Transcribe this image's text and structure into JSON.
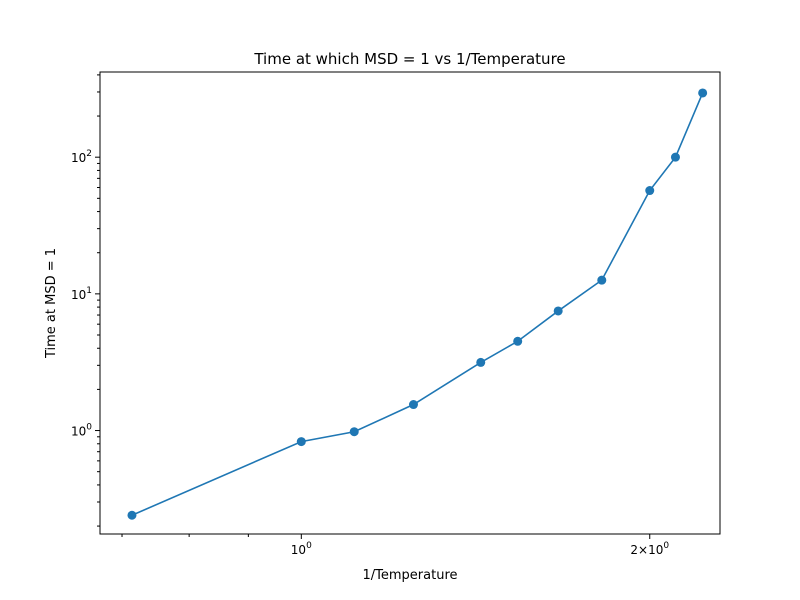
{
  "chart_data": {
    "type": "line",
    "title": "Time at which MSD = 1 vs 1/Temperature",
    "xlabel": "1/Temperature",
    "ylabel": "Time at MSD = 1",
    "xscale": "log",
    "yscale": "log",
    "xlim": [
      0.67,
      2.3
    ],
    "ylim": [
      0.175,
      420
    ],
    "grid": false,
    "legend": "none",
    "x_tick_labels": [
      "10^0",
      "2×10^0"
    ],
    "y_tick_labels": [
      "10^0",
      "10^1",
      "10^2"
    ],
    "series": [
      {
        "color": "#1f77b4",
        "marker": "circle",
        "x": [
          0.714,
          1.0,
          1.111,
          1.25,
          1.429,
          1.538,
          1.667,
          1.818,
          2.0,
          2.105,
          2.222
        ],
        "y": [
          0.24,
          0.83,
          0.98,
          1.55,
          3.15,
          4.5,
          7.5,
          12.6,
          57,
          100,
          295
        ]
      }
    ]
  }
}
